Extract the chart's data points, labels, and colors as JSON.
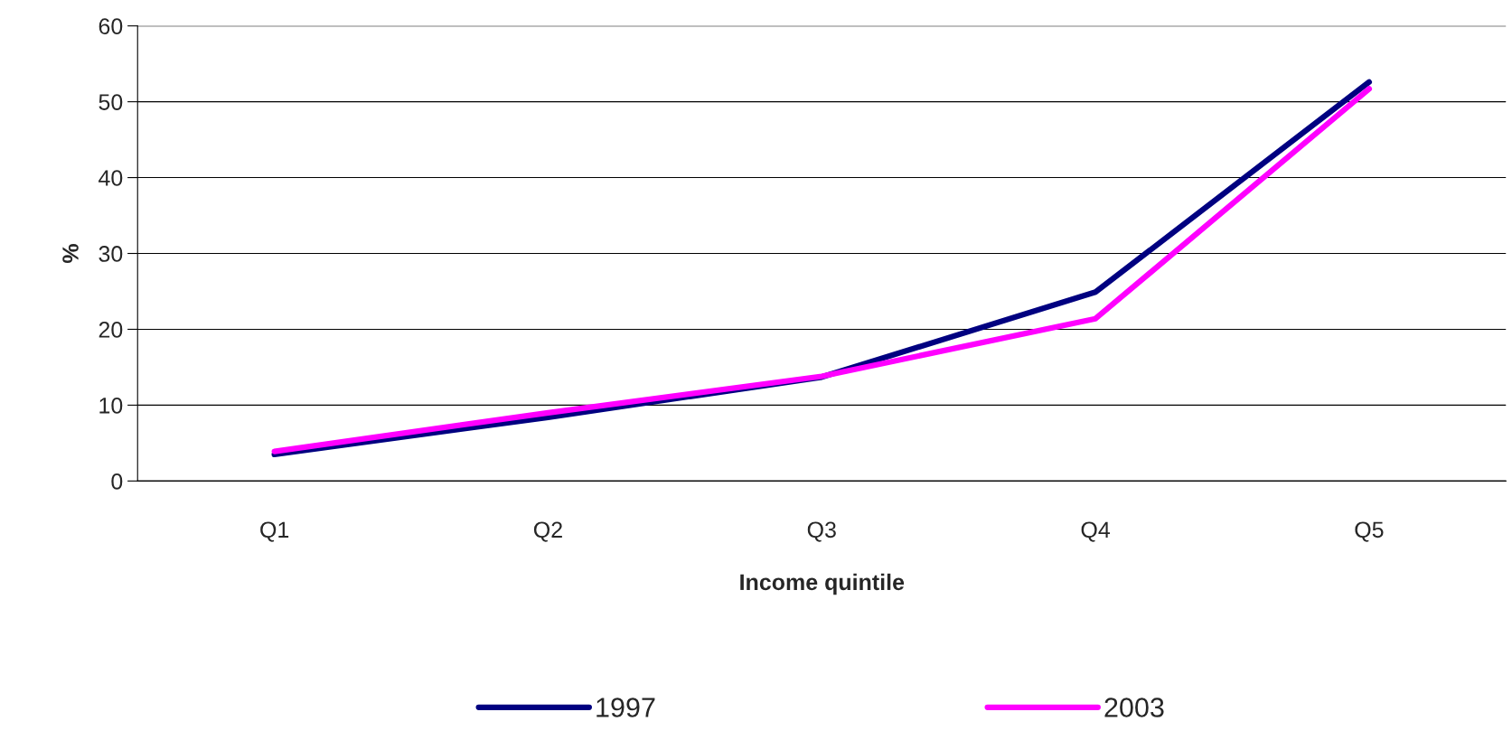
{
  "chart_data": {
    "type": "line",
    "xlabel": "Income quintile",
    "ylabel": "%",
    "categories": [
      "Q1",
      "Q2",
      "Q3",
      "Q4",
      "Q5"
    ],
    "series": [
      {
        "name": "1997",
        "color": "#000080",
        "values": [
          3.5,
          8.4,
          13.7,
          24.9,
          52.6
        ]
      },
      {
        "name": "2003",
        "color": "#ff00ff",
        "values": [
          3.9,
          9.0,
          13.8,
          21.4,
          51.7
        ]
      }
    ],
    "ylim": [
      0,
      60
    ],
    "yticks": [
      0,
      10,
      20,
      30,
      40,
      50,
      60
    ],
    "grid": "y",
    "legend": "bottom",
    "marker": "none",
    "line_style": "solid"
  }
}
